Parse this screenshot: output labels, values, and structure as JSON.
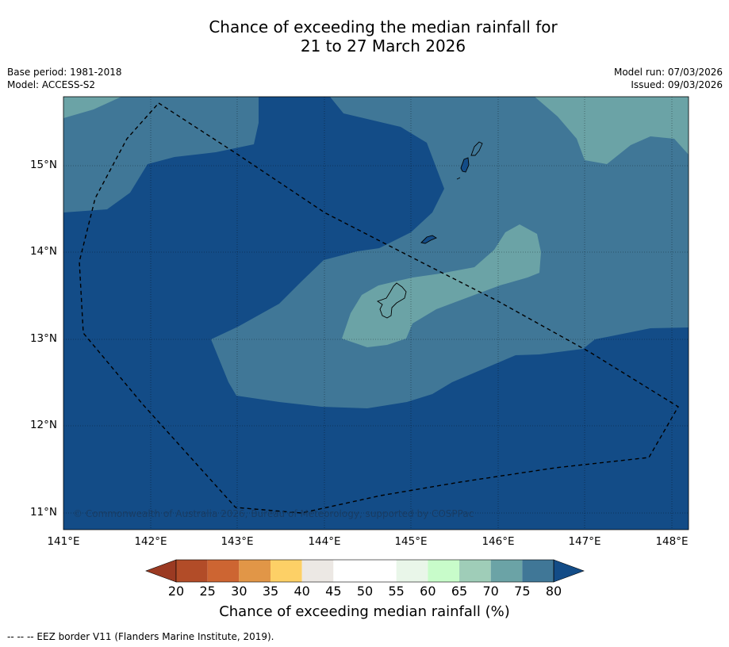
{
  "title": {
    "line1": "Chance of exceeding the median rainfall for",
    "line2": "21 to 27 March 2026"
  },
  "info": {
    "base_period": "Base period: 1981-2018",
    "model": "Model: ACCESS-S2",
    "model_run": "Model run: 07/03/2026",
    "issued": "Issued: 09/03/2026"
  },
  "map": {
    "copyright": "© Commonwealth of Australia 2026, Bureau of Meteorology, supported by COSPPac",
    "lat_labels": [
      "15°N",
      "14°N",
      "13°N",
      "12°N",
      "11°N"
    ],
    "lon_labels": [
      "141°E",
      "142°E",
      "143°E",
      "144°E",
      "145°E",
      "146°E",
      "147°E",
      "148°E"
    ],
    "colors": {
      "band_80_plus": "#134c87",
      "band_75_80": "#407797",
      "band_70_75": "#6ba3a6"
    }
  },
  "colorbar": {
    "ticks": [
      "20",
      "25",
      "30",
      "35",
      "40",
      "45",
      "50",
      "55",
      "60",
      "65",
      "70",
      "75",
      "80"
    ],
    "colors": [
      "#b24c28",
      "#cd6532",
      "#e19647",
      "#fdd066",
      "#ece8e4",
      "#ffffff",
      "#ffffff",
      "#e9f6e9",
      "#c8fcca",
      "#9fcdb8",
      "#6ba3a6",
      "#407797"
    ],
    "under_color": "#9b3a22",
    "over_color": "#134c87",
    "label": "Chance of exceeding median rainfall (%)"
  },
  "footnote": "--  --  -- EEZ border V11 (Flanders Marine Institute, 2019)."
}
